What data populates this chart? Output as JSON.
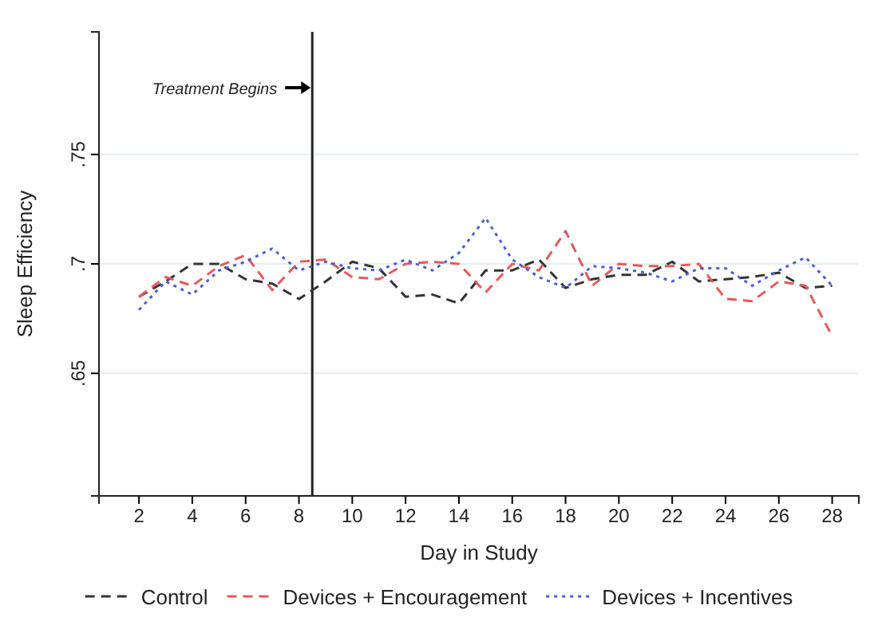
{
  "chart_data": {
    "type": "line",
    "xlabel": "Day in Study",
    "ylabel": "Sleep Efficiency",
    "x": [
      2,
      3,
      4,
      5,
      6,
      7,
      8,
      9,
      10,
      11,
      12,
      13,
      14,
      15,
      16,
      17,
      18,
      19,
      20,
      21,
      22,
      23,
      24,
      25,
      26,
      27,
      28
    ],
    "series": [
      {
        "name": "Control",
        "color": "#333333",
        "line_style": "dashed",
        "values": [
          0.685,
          0.692,
          0.7,
          0.7,
          0.693,
          0.691,
          0.684,
          0.692,
          0.701,
          0.698,
          0.685,
          0.686,
          0.682,
          0.697,
          0.697,
          0.702,
          0.689,
          0.693,
          0.695,
          0.695,
          0.701,
          0.692,
          0.693,
          0.694,
          0.696,
          0.689,
          0.69
        ]
      },
      {
        "name": "Devices + Encouragement",
        "color": "#e8595a",
        "line_style": "dashed",
        "values": [
          0.685,
          0.694,
          0.69,
          0.699,
          0.704,
          0.688,
          0.701,
          0.702,
          0.694,
          0.693,
          0.7,
          0.701,
          0.7,
          0.687,
          0.7,
          0.697,
          0.715,
          0.69,
          0.7,
          0.699,
          0.699,
          0.7,
          0.684,
          0.683,
          0.692,
          0.69,
          0.667
        ]
      },
      {
        "name": "Devices + Incentives",
        "color": "#4a5cdd",
        "line_style": "dotted",
        "values": [
          0.679,
          0.692,
          0.686,
          0.697,
          0.701,
          0.707,
          0.697,
          0.701,
          0.698,
          0.697,
          0.702,
          0.697,
          0.705,
          0.721,
          0.702,
          0.694,
          0.689,
          0.699,
          0.698,
          0.696,
          0.692,
          0.698,
          0.698,
          0.69,
          0.697,
          0.703,
          0.69
        ]
      }
    ],
    "xlim": [
      0.5,
      29
    ],
    "xticks": [
      2,
      4,
      6,
      8,
      10,
      12,
      14,
      16,
      18,
      20,
      22,
      24,
      26,
      28
    ],
    "ylim": [
      0.594,
      0.806
    ],
    "yticks": [
      {
        "value": 0.65,
        "label": ".65"
      },
      {
        "value": 0.7,
        "label": ".7"
      },
      {
        "value": 0.75,
        "label": ".75"
      }
    ],
    "grid": "y",
    "legend": "bottom",
    "marker": "none",
    "ref_lines": [
      {
        "axis": "x",
        "value": 8.5,
        "label": "Treatment Begins",
        "color": "#222222",
        "line_style": "solid"
      }
    ]
  }
}
